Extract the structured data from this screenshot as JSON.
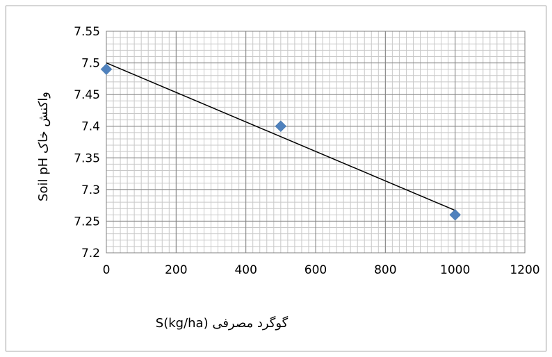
{
  "chart_data": {
    "type": "scatter",
    "xlabel": "گوگرد مصرفی (S(kg/ha",
    "ylabel": "Soil pH  واکنش خاک",
    "xlim": [
      0,
      1200
    ],
    "ylim": [
      7.2,
      7.55
    ],
    "x_ticks": [
      "0",
      "200",
      "400",
      "600",
      "800",
      "1000",
      "1200"
    ],
    "y_ticks": [
      "7.2",
      "7.25",
      "7.3",
      "7.35",
      "7.4",
      "7.45",
      "7.5",
      "7.55"
    ],
    "x_tick_values": [
      0,
      200,
      400,
      600,
      800,
      1000,
      1200
    ],
    "y_tick_values": [
      7.2,
      7.25,
      7.3,
      7.35,
      7.4,
      7.45,
      7.5,
      7.55
    ],
    "points": [
      {
        "x": 0,
        "y": 7.49
      },
      {
        "x": 500,
        "y": 7.4
      },
      {
        "x": 1000,
        "y": 7.26
      }
    ],
    "trendline": {
      "x": [
        0,
        1000
      ],
      "y": [
        7.5,
        7.267
      ]
    },
    "grid": true,
    "minor_grid": true,
    "legend": "none"
  },
  "colors": {
    "marker": "#4f81bd",
    "trendline": "#000000",
    "major_grid": "#808080",
    "minor_grid": "#c8c8c8"
  }
}
